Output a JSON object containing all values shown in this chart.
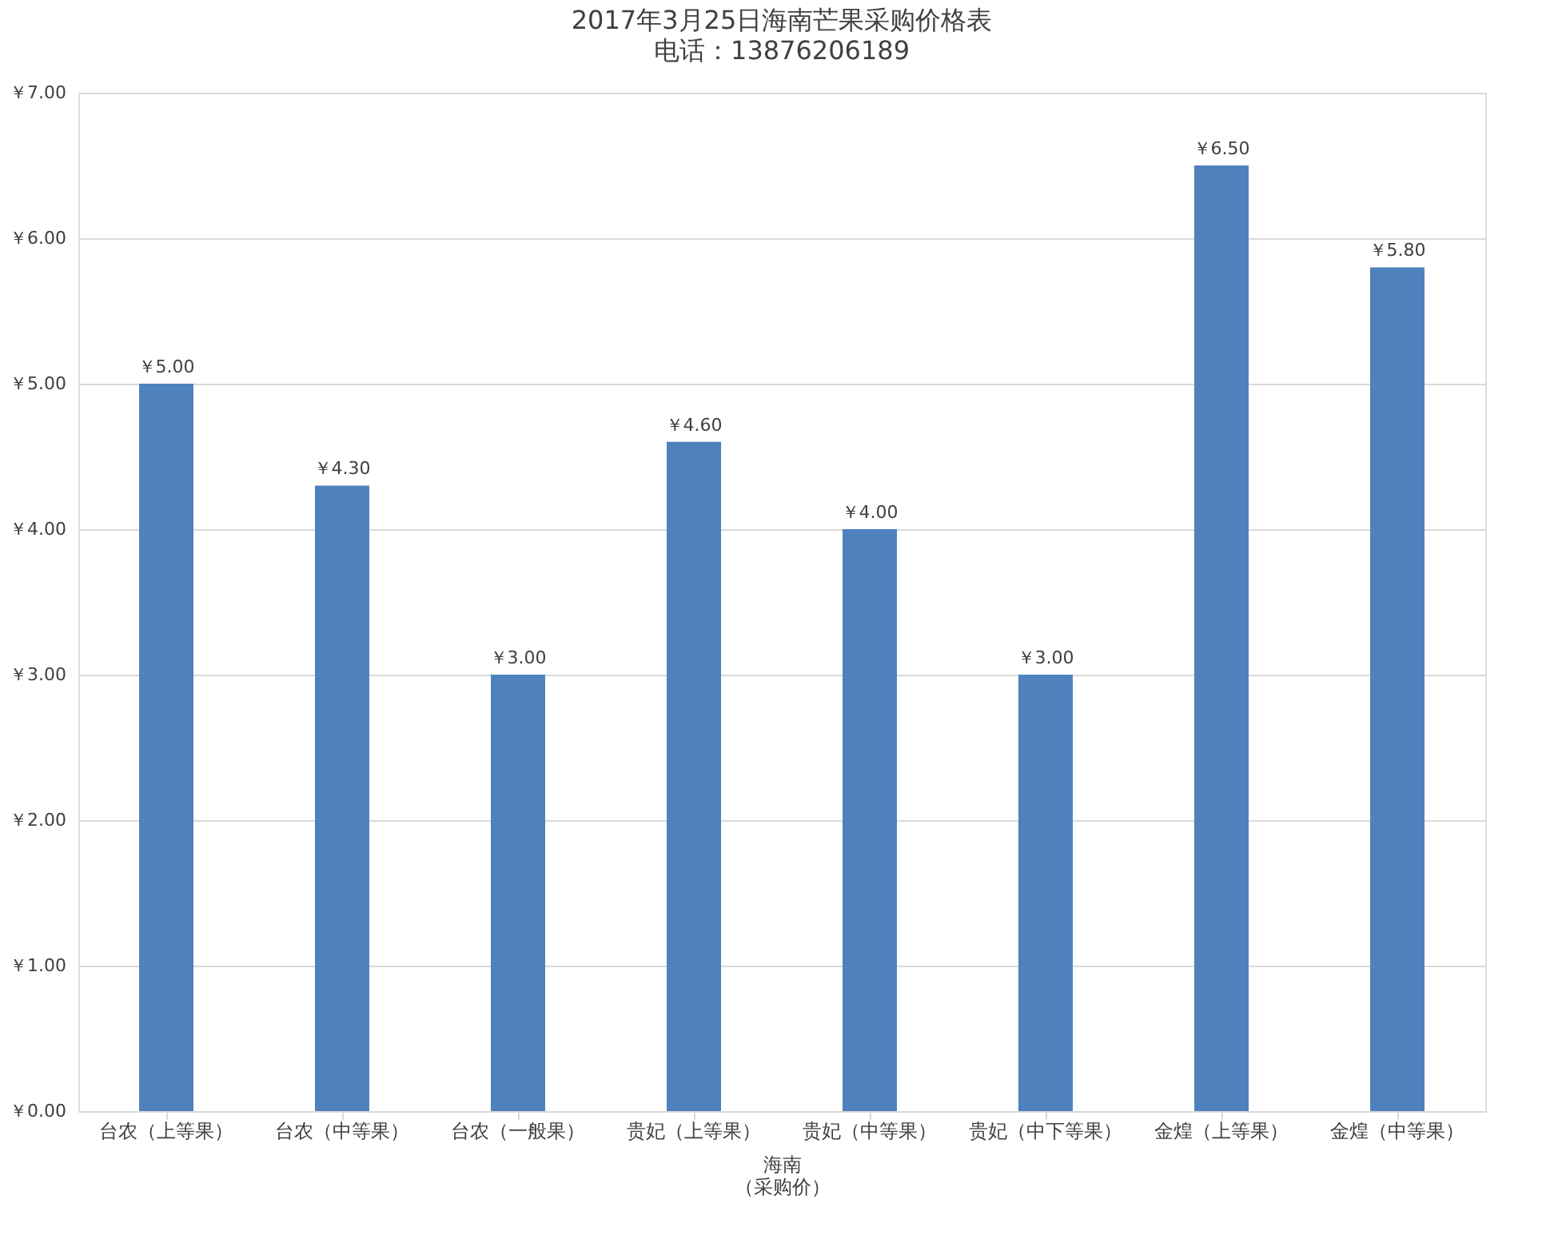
{
  "chart_data": {
    "type": "bar",
    "title": "2017年3月25日海南芒果采购价格表",
    "subtitle": "电话：13876206189",
    "categories": [
      "台农（上等果）",
      "台农（中等果）",
      "台农（一般果）",
      "贵妃（上等果）",
      "贵妃（中等果）",
      "贵妃（中下等果）",
      "金煌（上等果）",
      "金煌（中等果）"
    ],
    "values": [
      5.0,
      4.3,
      3.0,
      4.6,
      4.0,
      3.0,
      6.5,
      5.8
    ],
    "value_labels": [
      "￥5.00",
      "￥4.30",
      "￥3.00",
      "￥4.60",
      "￥4.00",
      "￥3.00",
      "￥6.50",
      "￥5.80"
    ],
    "color": "#4f81bd",
    "xlabel": "海南",
    "annotations": [
      "（采购价）"
    ],
    "ylim": [
      0,
      7
    ],
    "yticks": [
      {
        "value": 0,
        "label": "￥0.00"
      },
      {
        "value": 1,
        "label": "￥1.00"
      },
      {
        "value": 2,
        "label": "￥2.00"
      },
      {
        "value": 3,
        "label": "￥3.00"
      },
      {
        "value": 4,
        "label": "￥4.00"
      },
      {
        "value": 5,
        "label": "￥5.00"
      },
      {
        "value": 6,
        "label": "￥6.00"
      },
      {
        "value": 7,
        "label": "￥7.00"
      }
    ],
    "grid": "y"
  }
}
